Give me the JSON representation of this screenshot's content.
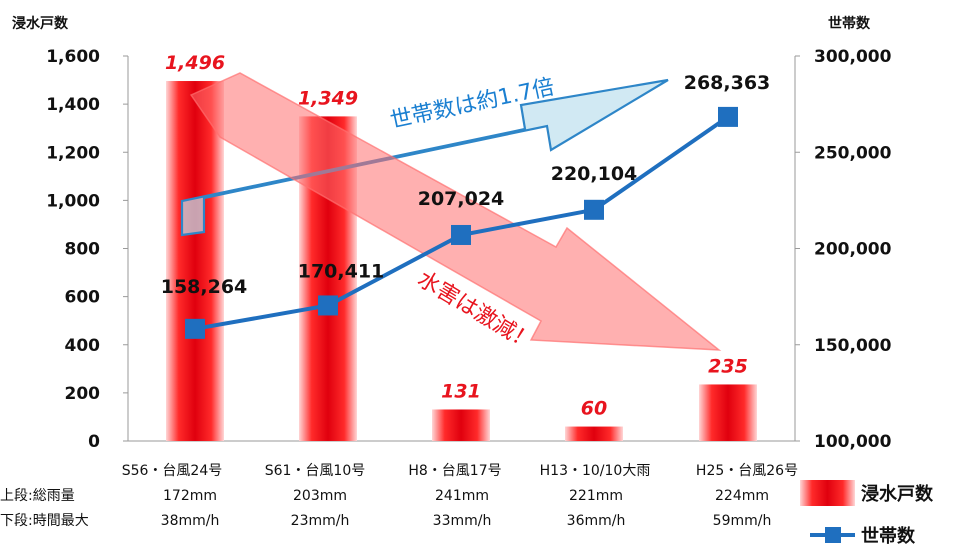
{
  "chart_data": {
    "type": "bar+line",
    "categories": [
      "S56・台風24号",
      "S61・台風10号",
      "H8・台風17号",
      "H13・10/10大雨",
      "H25・台風26号"
    ],
    "rainfall_total": [
      "172mm",
      "203mm",
      "241mm",
      "221mm",
      "224mm"
    ],
    "rainfall_hourly_max": [
      "38mm/h",
      "23mm/h",
      "33mm/h",
      "36mm/h",
      "59mm/h"
    ],
    "row_labels": {
      "upper": "上段:総雨量",
      "lower": "下段:時間最大"
    },
    "series": [
      {
        "name": "浸水戸数",
        "type": "bar",
        "axis": "left",
        "color": "#e8141e",
        "values": [
          1496,
          1349,
          131,
          60,
          235
        ],
        "labels": [
          "1,496",
          "1,349",
          "131",
          "60",
          "235"
        ]
      },
      {
        "name": "世帯数",
        "type": "line",
        "axis": "right",
        "color": "#1f6fbf",
        "values": [
          158264,
          170411,
          207024,
          220104,
          268363
        ],
        "labels": [
          "158,264",
          "170,411",
          "207,024",
          "220,104",
          "268,363"
        ]
      }
    ],
    "y_left": {
      "title": "浸水戸数",
      "ylim": [
        0,
        1600
      ],
      "ticks": [
        0,
        200,
        400,
        600,
        800,
        1000,
        1200,
        1400,
        1600
      ],
      "tick_labels": [
        "0",
        "200",
        "400",
        "600",
        "800",
        "1,000",
        "1,200",
        "1,400",
        "1,600"
      ]
    },
    "y_right": {
      "title": "世帯数",
      "ylim": [
        100000,
        300000
      ],
      "ticks": [
        100000,
        150000,
        200000,
        250000,
        300000
      ],
      "tick_labels": [
        "100,000",
        "150,000",
        "200,000",
        "250,000",
        "300,000"
      ]
    },
    "annotations": [
      {
        "text": "世帯数は約1.7倍",
        "color": "#1a7fd1"
      },
      {
        "text": "水害は激減！",
        "color": "#e8141e"
      }
    ],
    "legend": {
      "placement": "bottom-right"
    },
    "grid": false
  }
}
